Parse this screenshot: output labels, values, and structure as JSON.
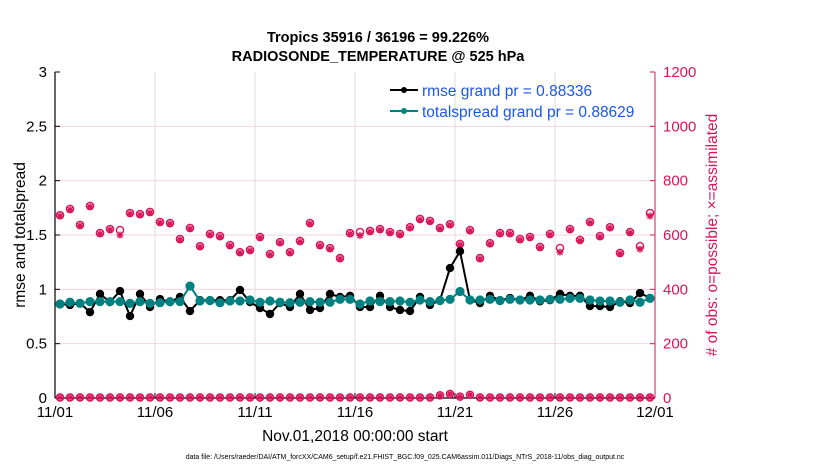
{
  "chart_data": {
    "type": "line",
    "title": [
      "Tropics 35916 / 36196 = 99.226%",
      "RADIOSONDE_TEMPERATURE @ 525 hPa"
    ],
    "xlabel": "Nov.01,2018 00:00:00 start",
    "ylabel": "rmse and totalspread",
    "ylabel_right": "# of obs: o=possible; ×=assimilated",
    "footer": "data file: /Users/raeder/DAI/ATM_forcXX/CAM6_setup/f.e21.FHIST_BGC.f09_025.CAM6assim.011/Diags_NTrS_2018-11/obs_diag_output.nc",
    "xlim": [
      "2018-11-01T00:00",
      "2018-12-01T00:00"
    ],
    "ylim": [
      0,
      3
    ],
    "ylim_right": [
      0,
      1200
    ],
    "grid": true,
    "legend_position": "top-right",
    "x_ticks": [
      {
        "label": "11/01",
        "date": "2018-11-01T00:00"
      },
      {
        "label": "11/06",
        "date": "2018-11-06T00:00"
      },
      {
        "label": "11/11",
        "date": "2018-11-11T00:00"
      },
      {
        "label": "11/16",
        "date": "2018-11-16T00:00"
      },
      {
        "label": "11/21",
        "date": "2018-11-21T00:00"
      },
      {
        "label": "11/26",
        "date": "2018-11-26T00:00"
      },
      {
        "label": "12/01",
        "date": "2018-12-01T00:00"
      }
    ],
    "y_ticks": [
      "0",
      "0.5",
      "1",
      "1.5",
      "2",
      "2.5",
      "3"
    ],
    "y_ticks_right": [
      "0",
      "200",
      "400",
      "600",
      "800",
      "1000",
      "1200"
    ],
    "colors": {
      "rmse": "#000000",
      "totalspread": "#008080",
      "obs": "#d6155a",
      "legend_text": "#1a56f0"
    },
    "x": [
      "2018-11-01T06:00",
      "2018-11-01T18:00",
      "2018-11-02T06:00",
      "2018-11-02T18:00",
      "2018-11-03T06:00",
      "2018-11-03T18:00",
      "2018-11-04T06:00",
      "2018-11-04T18:00",
      "2018-11-05T06:00",
      "2018-11-05T18:00",
      "2018-11-06T06:00",
      "2018-11-06T18:00",
      "2018-11-07T06:00",
      "2018-11-07T18:00",
      "2018-11-08T06:00",
      "2018-11-08T18:00",
      "2018-11-09T06:00",
      "2018-11-09T18:00",
      "2018-11-10T06:00",
      "2018-11-10T18:00",
      "2018-11-11T06:00",
      "2018-11-11T18:00",
      "2018-11-12T06:00",
      "2018-11-12T18:00",
      "2018-11-13T06:00",
      "2018-11-13T18:00",
      "2018-11-14T06:00",
      "2018-11-14T18:00",
      "2018-11-15T06:00",
      "2018-11-15T18:00",
      "2018-11-16T06:00",
      "2018-11-16T18:00",
      "2018-11-17T06:00",
      "2018-11-17T18:00",
      "2018-11-18T06:00",
      "2018-11-18T18:00",
      "2018-11-19T06:00",
      "2018-11-19T18:00",
      "2018-11-20T06:00",
      "2018-11-20T18:00",
      "2018-11-21T06:00",
      "2018-11-21T18:00",
      "2018-11-22T06:00",
      "2018-11-22T18:00",
      "2018-11-23T06:00",
      "2018-11-23T18:00",
      "2018-11-24T06:00",
      "2018-11-24T18:00",
      "2018-11-25T06:00",
      "2018-11-25T18:00",
      "2018-11-26T06:00",
      "2018-11-26T18:00",
      "2018-11-27T06:00",
      "2018-11-27T18:00",
      "2018-11-28T06:00",
      "2018-11-28T18:00",
      "2018-11-29T06:00",
      "2018-11-29T18:00",
      "2018-11-30T06:00",
      "2018-11-30T18:00"
    ],
    "series": [
      {
        "name": "rmse grand pr = 0.88336",
        "axis": "left",
        "values": [
          0.865,
          0.856,
          0.874,
          0.79,
          0.957,
          0.883,
          0.984,
          0.754,
          0.957,
          0.837,
          0.91,
          0.883,
          0.93,
          0.8,
          0.9,
          0.9,
          0.9,
          0.9,
          0.994,
          0.883,
          0.828,
          0.773,
          0.874,
          0.837,
          0.957,
          0.81,
          0.828,
          0.957,
          0.93,
          0.94,
          0.837,
          0.837,
          0.94,
          0.837,
          0.81,
          0.8,
          0.93,
          0.856,
          0.9,
          1.196,
          1.35,
          0.9,
          0.874,
          0.94,
          0.9,
          0.92,
          0.9,
          0.94,
          0.89,
          0.9,
          0.957,
          0.94,
          0.94,
          0.846,
          0.846,
          0.837,
          0.89,
          0.874,
          0.966,
          0.92
        ]
      },
      {
        "name": "totalspread grand pr = 0.88629",
        "axis": "left",
        "values": [
          0.865,
          0.881,
          0.871,
          0.887,
          0.887,
          0.887,
          0.887,
          0.871,
          0.887,
          0.871,
          0.877,
          0.887,
          0.887,
          1.03,
          0.893,
          0.896,
          0.877,
          0.893,
          0.893,
          0.902,
          0.881,
          0.893,
          0.881,
          0.877,
          0.881,
          0.887,
          0.881,
          0.881,
          0.908,
          0.908,
          0.865,
          0.893,
          0.887,
          0.887,
          0.893,
          0.881,
          0.902,
          0.887,
          0.896,
          0.908,
          0.98,
          0.902,
          0.902,
          0.908,
          0.896,
          0.908,
          0.902,
          0.902,
          0.902,
          0.908,
          0.908,
          0.917,
          0.917,
          0.902,
          0.893,
          0.893,
          0.881,
          0.902,
          0.881,
          0.917
        ]
      },
      {
        "axis": "right",
        "marker": "o",
        "values": [
          673,
          696,
          637,
          707,
          607,
          622,
          618,
          681,
          677,
          685,
          648,
          644,
          585,
          626,
          559,
          604,
          596,
          563,
          537,
          545,
          593,
          530,
          574,
          537,
          578,
          644,
          563,
          552,
          515,
          607,
          611,
          615,
          622,
          611,
          604,
          629,
          659,
          652,
          626,
          640,
          567,
          618,
          515,
          570,
          607,
          607,
          585,
          593,
          556,
          604,
          552,
          622,
          582,
          648,
          596,
          629,
          534,
          611,
          559,
          681
        ]
      },
      {
        "axis": "right",
        "marker": "x",
        "values": [
          670,
          693,
          634,
          704,
          604,
          619,
          600,
          678,
          674,
          682,
          645,
          641,
          582,
          623,
          556,
          601,
          593,
          560,
          534,
          542,
          590,
          527,
          571,
          534,
          575,
          641,
          560,
          549,
          512,
          604,
          598,
          612,
          619,
          608,
          601,
          626,
          656,
          649,
          623,
          637,
          564,
          615,
          512,
          567,
          604,
          604,
          582,
          590,
          553,
          601,
          537,
          619,
          579,
          645,
          593,
          626,
          531,
          608,
          548,
          670
        ]
      },
      {
        "axis": "right",
        "marker": "o",
        "values": [
          2,
          2,
          2,
          2,
          2,
          2,
          2,
          2,
          2,
          2,
          2,
          2,
          2,
          2,
          2,
          2,
          2,
          2,
          2,
          2,
          2,
          2,
          2,
          2,
          2,
          2,
          2,
          2,
          2,
          2,
          2,
          2,
          2,
          2,
          2,
          2,
          2,
          2,
          10,
          15,
          5,
          12,
          2,
          2,
          2,
          2,
          2,
          2,
          2,
          2,
          2,
          2,
          2,
          2,
          2,
          2,
          2,
          2,
          2,
          2
        ]
      },
      {
        "axis": "right",
        "marker": "x",
        "values": [
          2,
          2,
          2,
          2,
          2,
          2,
          2,
          2,
          2,
          2,
          2,
          2,
          2,
          2,
          2,
          2,
          2,
          2,
          2,
          2,
          2,
          2,
          2,
          2,
          2,
          2,
          2,
          2,
          2,
          2,
          2,
          2,
          2,
          2,
          2,
          2,
          2,
          2,
          10,
          15,
          5,
          12,
          2,
          2,
          2,
          2,
          2,
          2,
          2,
          2,
          2,
          2,
          2,
          2,
          2,
          2,
          2,
          2,
          2,
          2
        ]
      }
    ]
  }
}
